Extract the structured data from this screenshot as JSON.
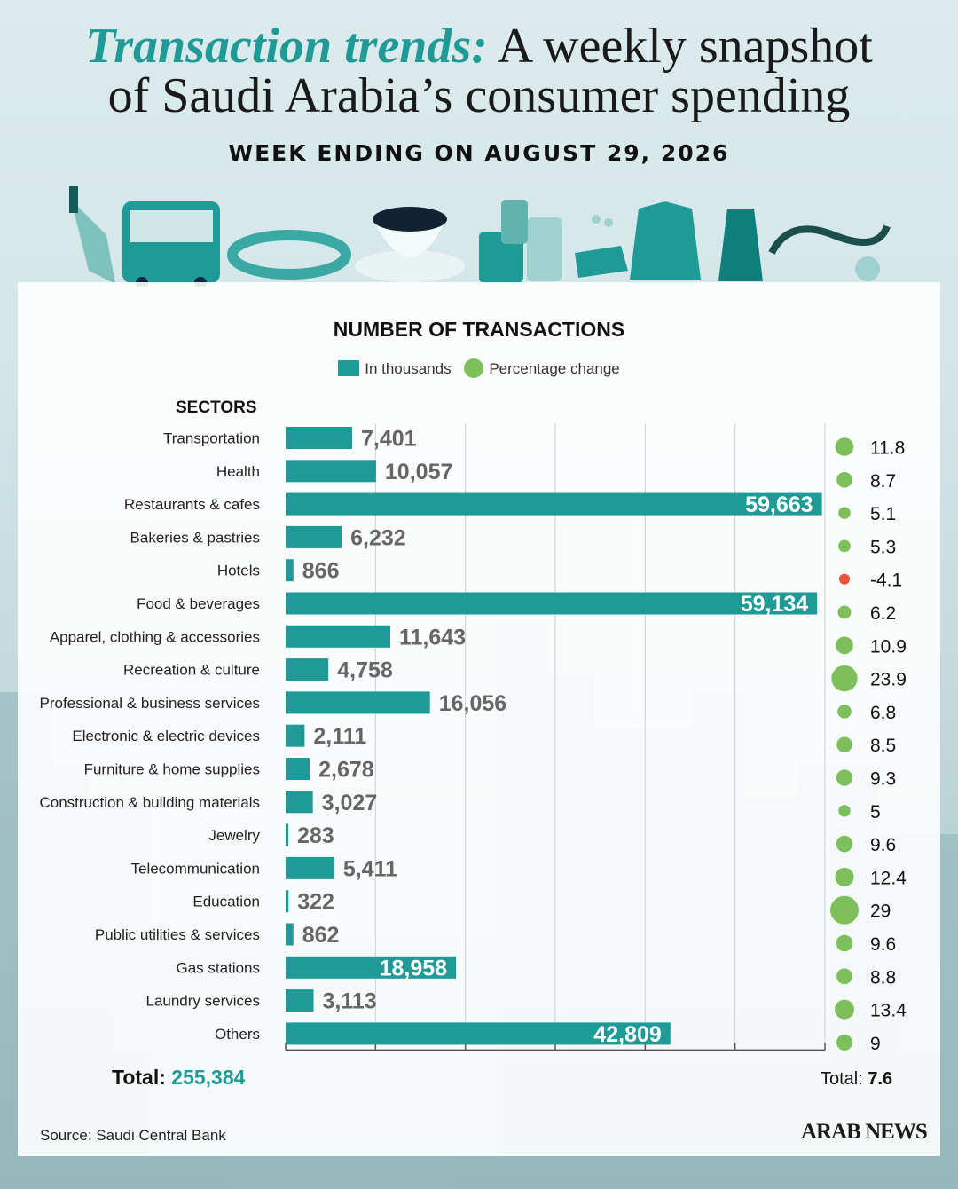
{
  "header": {
    "title_accent": "Transaction trends:",
    "title_rest": " A weekly snapshot",
    "title_line2": "of Saudi Arabia’s consumer spending",
    "subtitle": "WEEK ENDING ON AUGUST 29, 2026"
  },
  "icons": [
    "phone-hand-icon",
    "bus-icon",
    "bracelet-icon",
    "coffee-cup-icon",
    "luggage-icon",
    "sandals-icon",
    "jacket-icon",
    "dress-icon",
    "stethoscope-icon"
  ],
  "colors": {
    "bar": "#1f9a96",
    "positive": "#7dbf5a",
    "negative": "#e8573a",
    "value_label": "#666666"
  },
  "chart_data": {
    "type": "bar",
    "title": "NUMBER OF TRANSACTIONS",
    "legend": [
      "In thousands",
      "Percentage change"
    ],
    "category_header": "SECTORS",
    "categories": [
      "Transportation",
      "Health",
      "Restaurants & cafes",
      "Bakeries & pastries",
      "Hotels",
      "Food & beverages",
      "Apparel, clothing & accessories",
      "Recreation & culture",
      "Professional & business services",
      "Electronic & electric devices",
      "Furniture & home supplies",
      "Construction & building materials",
      "Jewelry",
      "Telecommunication",
      "Education",
      "Public utilities & services",
      "Gas stations",
      "Laundry services",
      "Others"
    ],
    "series": [
      {
        "name": "In thousands",
        "values": [
          7401,
          10057,
          59663,
          6232,
          866,
          59134,
          11643,
          4758,
          16056,
          2111,
          2678,
          3027,
          283,
          5411,
          322,
          862,
          18958,
          3113,
          42809
        ]
      },
      {
        "name": "Percentage change",
        "values": [
          11.8,
          8.7,
          5.1,
          5.3,
          -4.1,
          6.2,
          10.9,
          23.9,
          6.8,
          8.5,
          9.3,
          5,
          9.6,
          12.4,
          29,
          9.6,
          8.8,
          13.4,
          9
        ]
      }
    ],
    "value_labels": [
      "7,401",
      "10,057",
      "59,663",
      "6,232",
      "866",
      "59,134",
      "11,643",
      "4,758",
      "16,056",
      "2,111",
      "2,678",
      "3,027",
      "283",
      "5,411",
      "322",
      "862",
      "18,958",
      "3,113",
      "42,809"
    ],
    "pct_labels": [
      "11.8",
      "8.7",
      "5.1",
      "5.3",
      "-4.1",
      "6.2",
      "10.9",
      "23.9",
      "6.8",
      "8.5",
      "9.3",
      "5",
      "9.6",
      "12.4",
      "29",
      "9.6",
      "8.8",
      "13.4",
      "9"
    ],
    "xlim": [
      0,
      60000
    ],
    "grid": true,
    "legend_placement": "top-center"
  },
  "totals": {
    "left_label": "Total:",
    "left_value": "255,384",
    "right_label": "Total:",
    "right_value": "7.6"
  },
  "footer": {
    "source": "Source: Saudi Central Bank",
    "brand": "ARAB NEWS"
  }
}
